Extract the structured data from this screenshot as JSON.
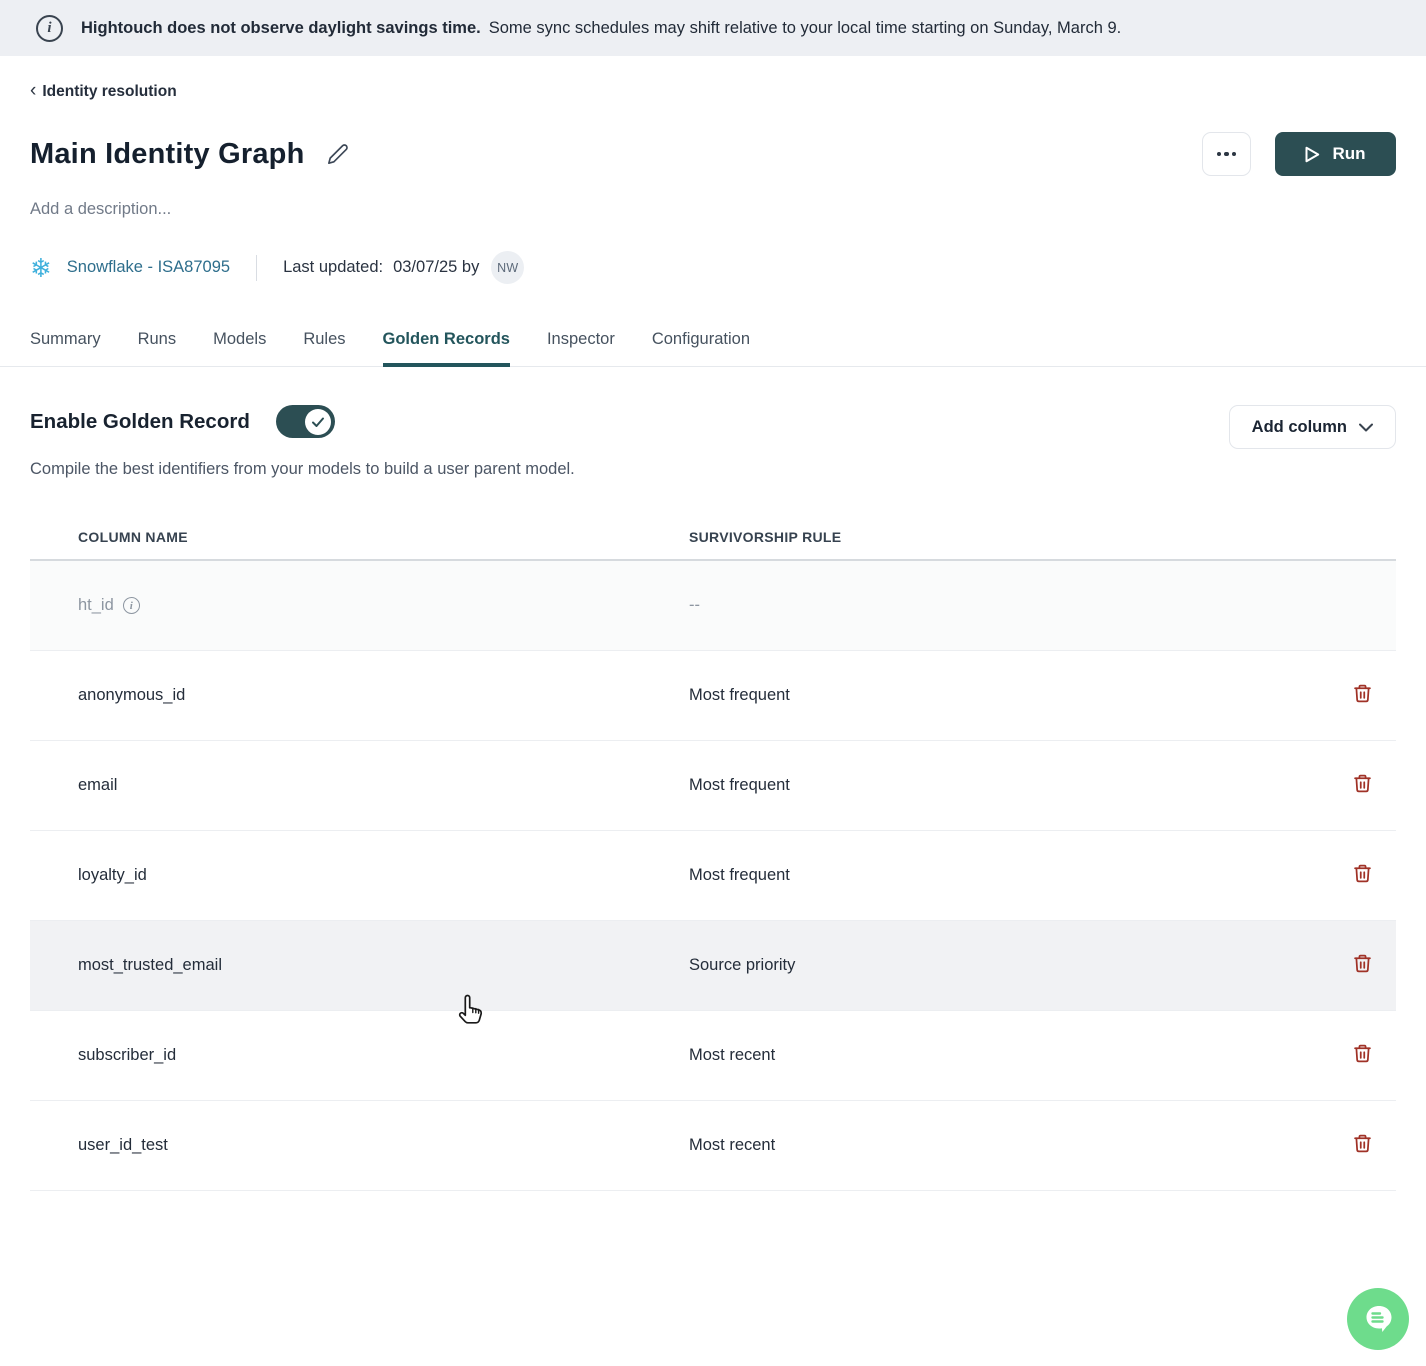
{
  "banner": {
    "bold_text": "Hightouch does not observe daylight savings time.",
    "rest_text": "Some sync schedules may shift relative to your local time starting on Sunday, March 9."
  },
  "breadcrumb": {
    "chevron": "‹",
    "label": "Identity resolution"
  },
  "header": {
    "title": "Main Identity Graph",
    "description_placeholder": "Add a description...",
    "run_label": "Run"
  },
  "meta": {
    "snowflake_glyph": "❄",
    "source_link": "Snowflake - ISA87095",
    "last_updated_label": "Last updated:",
    "last_updated_date": "03/07/25 by",
    "avatar_initials": "NW"
  },
  "tabs": [
    {
      "label": "Summary",
      "active": false
    },
    {
      "label": "Runs",
      "active": false
    },
    {
      "label": "Models",
      "active": false
    },
    {
      "label": "Rules",
      "active": false
    },
    {
      "label": "Golden Records",
      "active": true
    },
    {
      "label": "Inspector",
      "active": false
    },
    {
      "label": "Configuration",
      "active": false
    }
  ],
  "golden_record": {
    "title": "Enable Golden Record",
    "toggle_state": "on",
    "subtitle": "Compile the best identifiers from your models to build a user parent model.",
    "add_column_label": "Add column"
  },
  "table": {
    "columns": [
      "COLUMN NAME",
      "SURVIVORSHIP RULE"
    ],
    "rows": [
      {
        "name": "ht_id",
        "rule": "--",
        "has_info": true,
        "deletable": false,
        "muted": true,
        "highlighted": false
      },
      {
        "name": "anonymous_id",
        "rule": "Most frequent",
        "has_info": false,
        "deletable": true,
        "muted": false,
        "highlighted": false
      },
      {
        "name": "email",
        "rule": "Most frequent",
        "has_info": false,
        "deletable": true,
        "muted": false,
        "highlighted": false
      },
      {
        "name": "loyalty_id",
        "rule": "Most frequent",
        "has_info": false,
        "deletable": true,
        "muted": false,
        "highlighted": false
      },
      {
        "name": "most_trusted_email",
        "rule": "Source priority",
        "has_info": false,
        "deletable": true,
        "muted": false,
        "highlighted": true
      },
      {
        "name": "subscriber_id",
        "rule": "Most recent",
        "has_info": false,
        "deletable": true,
        "muted": false,
        "highlighted": false
      },
      {
        "name": "user_id_test",
        "rule": "Most recent",
        "has_info": false,
        "deletable": true,
        "muted": false,
        "highlighted": false
      }
    ]
  },
  "colors": {
    "accent_dark_teal": "#2c4e53",
    "active_tab": "#23555c",
    "link_blue": "#2e6e8c",
    "snowflake_blue": "#3fb0dc",
    "trash_red": "#a03227",
    "chat_green": "#6edc8c",
    "banner_bg": "#edeff3",
    "row_hover_bg": "#f1f2f4"
  }
}
